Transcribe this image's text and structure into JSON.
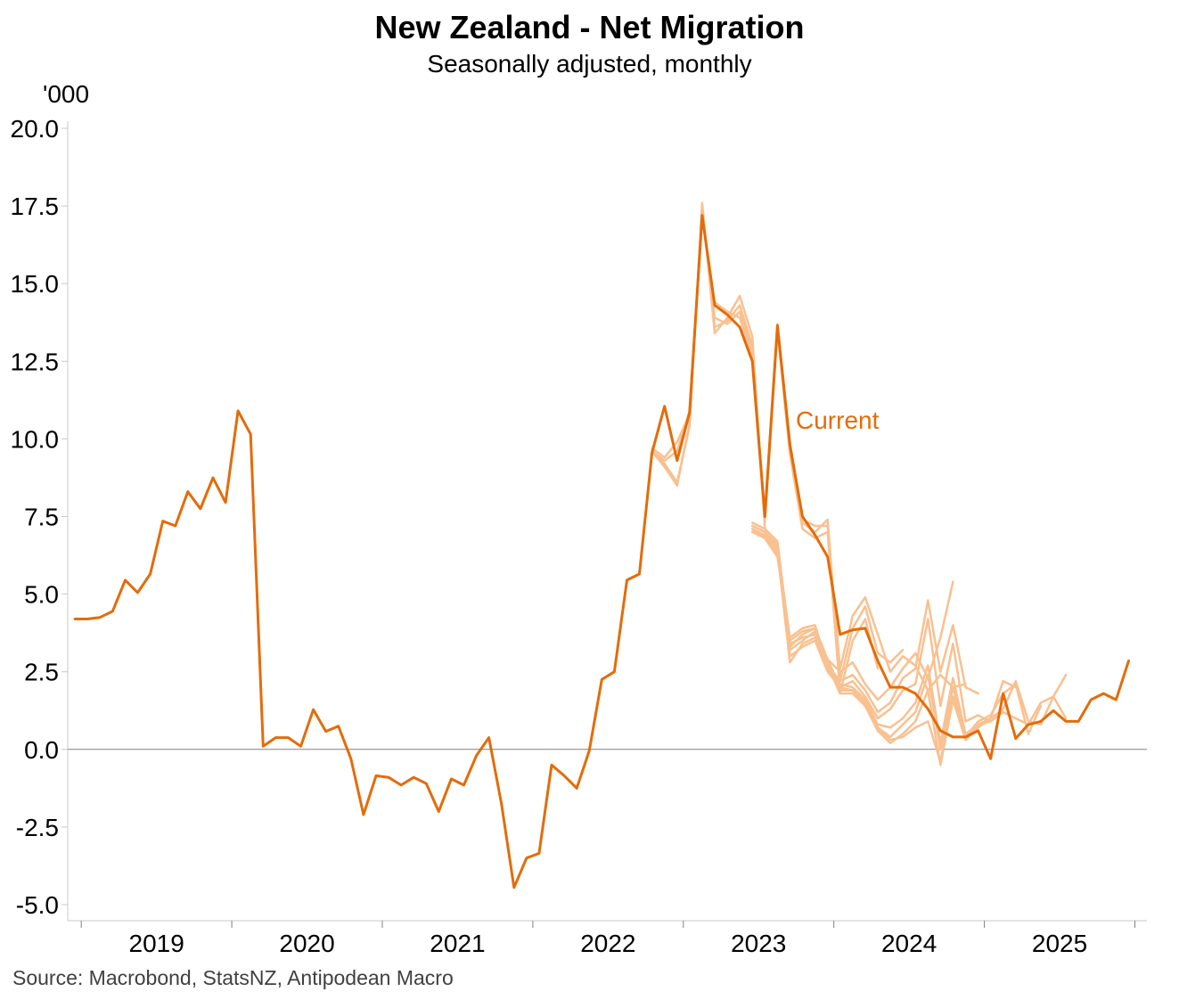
{
  "chart_data": {
    "type": "line",
    "title": "New Zealand - Net Migration",
    "subtitle": "Seasonally adjusted, monthly",
    "ylabel": "'000",
    "source": "Source: Macrobond, StatsNZ, Antipodean Macro",
    "ylim": [
      -5.0,
      20.0
    ],
    "yticks": [
      "20.0",
      "17.5",
      "15.0",
      "12.5",
      "10.0",
      "7.5",
      "5.0",
      "2.5",
      "0.0",
      "-2.5",
      "-5.0"
    ],
    "ytick_values": [
      20.0,
      17.5,
      15.0,
      12.5,
      10.0,
      7.5,
      5.0,
      2.5,
      0.0,
      -2.5,
      -5.0
    ],
    "xlim_years": [
      2018.91,
      2026.08
    ],
    "year_labels": [
      "2019",
      "2020",
      "2021",
      "2022",
      "2023",
      "2024",
      "2025"
    ],
    "year_boundaries": [
      2019,
      2020,
      2021,
      2022,
      2023,
      2024,
      2025,
      2026
    ],
    "annotation": "Current",
    "colors": {
      "current": "#E36C0A",
      "vintage": "#F9C090",
      "zero_line": "#808080",
      "axis": "#C8C8C8"
    },
    "current_series": {
      "name": "Current",
      "start": "2018-12",
      "values": [
        4.2,
        4.2,
        4.25,
        4.45,
        5.45,
        5.05,
        5.65,
        7.35,
        7.2,
        8.3,
        7.75,
        8.75,
        7.95,
        10.9,
        10.15,
        0.1,
        0.38,
        0.38,
        0.1,
        1.28,
        0.58,
        0.75,
        -0.3,
        -2.1,
        -0.85,
        -0.9,
        -1.15,
        -0.9,
        -1.1,
        -2.0,
        -0.95,
        -1.15,
        -0.2,
        0.38,
        -1.75,
        -4.45,
        -3.5,
        -3.35,
        -0.5,
        -0.85,
        -1.25,
        -0.05,
        2.25,
        2.5,
        5.45,
        5.65,
        9.55,
        11.05,
        9.3,
        10.85,
        17.2,
        14.3,
        14.0,
        13.6,
        12.5,
        7.5,
        13.65,
        9.8,
        7.5,
        6.9,
        6.2,
        3.7,
        3.85,
        3.9,
        2.85,
        2.0,
        2.0,
        1.8,
        1.3,
        0.6,
        0.4,
        0.4,
        0.6,
        -0.3,
        1.8,
        0.35,
        0.8,
        0.9,
        1.25,
        0.9,
        0.9,
        1.6,
        1.8,
        1.6,
        2.85
      ]
    },
    "vintages": [
      {
        "name": "vintage-1",
        "start": "2022-10",
        "values": [
          9.6,
          9.2,
          8.6,
          10.4,
          17.6,
          13.4,
          13.9,
          14.6,
          13.3,
          7.1
        ]
      },
      {
        "name": "vintage-2",
        "start": "2022-10",
        "values": [
          9.6,
          9.1,
          8.5,
          10.5,
          17.5,
          13.6,
          13.8,
          14.3,
          13.0,
          7.3,
          13.5,
          9.5,
          7.1,
          6.8,
          7.0,
          1.8,
          3.5,
          4.2,
          2.6
        ]
      },
      {
        "name": "vintage-3",
        "start": "2022-10",
        "values": [
          9.6,
          9.3,
          9.6,
          10.9,
          17.3,
          13.9,
          13.7,
          14.1,
          12.8,
          7.4,
          13.6,
          9.7,
          7.3,
          7.0,
          7.4,
          2.2,
          3.9,
          4.6,
          3.1,
          2.8,
          3.2
        ]
      },
      {
        "name": "vintage-4",
        "start": "2022-10",
        "values": [
          9.7,
          9.4,
          9.9,
          10.8,
          17.1,
          14.4,
          14.1,
          13.9,
          12.6,
          7.6,
          13.7,
          9.9,
          7.4,
          7.2,
          7.2,
          2.6,
          4.3,
          4.9,
          3.7,
          2.5,
          3.0,
          2.7,
          1.9,
          2.4,
          2.0,
          2.1
        ]
      },
      {
        "name": "vintage-5",
        "start": "2023-06",
        "values": [
          7.2,
          7.0,
          6.6,
          3.2,
          3.5,
          3.8,
          2.9,
          2.5,
          2.8,
          2.1,
          1.6,
          2.0,
          2.6,
          3.1,
          2.3,
          3.6,
          5.4
        ]
      },
      {
        "name": "vintage-6",
        "start": "2023-06",
        "values": [
          7.0,
          6.8,
          6.4,
          2.8,
          3.4,
          3.6,
          2.7,
          2.2,
          2.4,
          1.9,
          1.2,
          1.5,
          2.3,
          2.6,
          4.8,
          2.5,
          4.0,
          2.0,
          1.8
        ]
      },
      {
        "name": "vintage-7",
        "start": "2023-06",
        "values": [
          7.1,
          6.9,
          6.5,
          3.0,
          3.3,
          3.5,
          2.5,
          2.0,
          2.2,
          1.7,
          1.0,
          1.3,
          1.9,
          2.1,
          4.2,
          1.4,
          3.4,
          0.9,
          1.1,
          0.9
        ]
      },
      {
        "name": "vintage-8",
        "start": "2023-06",
        "values": [
          7.3,
          7.1,
          6.7,
          3.4,
          3.6,
          3.7,
          2.6,
          2.1,
          2.0,
          1.6,
          0.8,
          0.7,
          1.0,
          1.5,
          2.7,
          0.2,
          2.3,
          0.5,
          0.8,
          1.0,
          2.2,
          2.0
        ]
      },
      {
        "name": "vintage-9",
        "start": "2023-06",
        "values": [
          7.0,
          6.9,
          6.3,
          3.3,
          3.7,
          3.9,
          2.8,
          1.9,
          1.9,
          1.5,
          0.7,
          0.4,
          0.8,
          1.2,
          2.4,
          0.0,
          2.0,
          0.4,
          0.9,
          1.1,
          1.8,
          2.1,
          0.5,
          1.4
        ]
      },
      {
        "name": "vintage-10",
        "start": "2023-06",
        "values": [
          7.2,
          7.0,
          6.5,
          3.6,
          3.9,
          4.0,
          2.7,
          1.8,
          1.8,
          1.4,
          0.6,
          0.2,
          0.5,
          0.9,
          1.9,
          -0.5,
          1.6,
          0.3,
          0.7,
          1.0,
          1.3,
          2.2,
          0.9,
          0.8,
          1.7,
          2.4
        ]
      },
      {
        "name": "vintage-11",
        "start": "2023-06",
        "values": [
          7.1,
          6.8,
          6.2,
          3.5,
          3.8,
          3.9,
          2.9,
          2.0,
          1.9,
          1.4,
          0.7,
          0.3,
          0.4,
          0.7,
          0.9,
          -0.4,
          1.7,
          0.3,
          0.8,
          0.9,
          1.2,
          1.0,
          0.8,
          1.5,
          1.7,
          1.0
        ]
      }
    ]
  }
}
